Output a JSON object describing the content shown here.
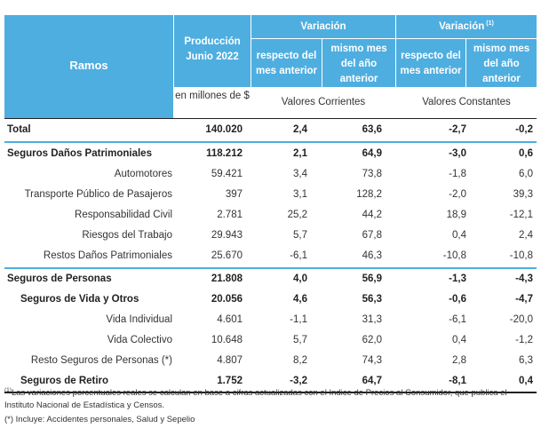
{
  "header": {
    "ramos": "Ramos",
    "produccion": "Producción Junio 2022",
    "variacion_corrientes": "Variación",
    "variacion_constantes": "Variación",
    "variacion_constantes_note": "(1)",
    "respecto_mes_anterior_1": "respecto del mes anterior",
    "mismo_mes_anio_anterior_1": "mismo mes del año anterior",
    "respecto_mes_anterior_2": "respecto del mes anterior",
    "mismo_mes_anio_anterior_2": "mismo mes del año anterior",
    "units": "en millones de $",
    "valores_corrientes": "Valores Corrientes",
    "valores_constantes": "Valores Constantes"
  },
  "rows": [
    {
      "label": "Total",
      "prod": "140.020",
      "v1": "2,4",
      "v2": "63,6",
      "v3": "-2,7",
      "v4": "-0,2"
    },
    {
      "label": "Seguros Daños Patrimoniales",
      "prod": "118.212",
      "v1": "2,1",
      "v2": "64,9",
      "v3": "-3,0",
      "v4": "0,6"
    },
    {
      "label": "Automotores",
      "prod": "59.421",
      "v1": "3,4",
      "v2": "73,8",
      "v3": "-1,8",
      "v4": "6,0"
    },
    {
      "label": "Transporte Público de Pasajeros",
      "prod": "397",
      "v1": "3,1",
      "v2": "128,2",
      "v3": "-2,0",
      "v4": "39,3"
    },
    {
      "label": "Responsabilidad Civil",
      "prod": "2.781",
      "v1": "25,2",
      "v2": "44,2",
      "v3": "18,9",
      "v4": "-12,1"
    },
    {
      "label": "Riesgos del Trabajo",
      "prod": "29.943",
      "v1": "5,7",
      "v2": "67,8",
      "v3": "0,4",
      "v4": "2,4"
    },
    {
      "label": "Restos Daños Patrimoniales",
      "prod": "25.670",
      "v1": "-6,1",
      "v2": "46,3",
      "v3": "-10,8",
      "v4": "-10,8"
    },
    {
      "label": "Seguros de Personas",
      "prod": "21.808",
      "v1": "4,0",
      "v2": "56,9",
      "v3": "-1,3",
      "v4": "-4,3"
    },
    {
      "label": "Seguros de Vida y Otros",
      "prod": "20.056",
      "v1": "4,6",
      "v2": "56,3",
      "v3": "-0,6",
      "v4": "-4,7"
    },
    {
      "label": "Vida Individual",
      "prod": "4.601",
      "v1": "-1,1",
      "v2": "31,3",
      "v3": "-6,1",
      "v4": "-20,0"
    },
    {
      "label": "Vida Colectivo",
      "prod": "10.648",
      "v1": "5,7",
      "v2": "62,0",
      "v3": "0,4",
      "v4": "-1,2"
    },
    {
      "label": "Resto Seguros de Personas (*)",
      "prod": "4.807",
      "v1": "8,2",
      "v2": "74,3",
      "v3": "2,8",
      "v4": "6,3"
    },
    {
      "label": "Seguros de Retiro",
      "prod": "1.752",
      "v1": "-3,2",
      "v2": "64,7",
      "v3": "-8,1",
      "v4": "0,4"
    }
  ],
  "footnotes": {
    "note1_marker": "(1)",
    "note1_text": "Las variaciones porcentuales reales se calculan en base a cifras actualizadas con  el Indice de Precios al Consumidor, que publica el Instituto Nacional de Estadística y  Censos.",
    "note2_text": "(*) Incluye: Accidentes personales, Salud y Sepelio"
  },
  "colors": {
    "header_bg": "#4faee0",
    "text": "#333333"
  }
}
